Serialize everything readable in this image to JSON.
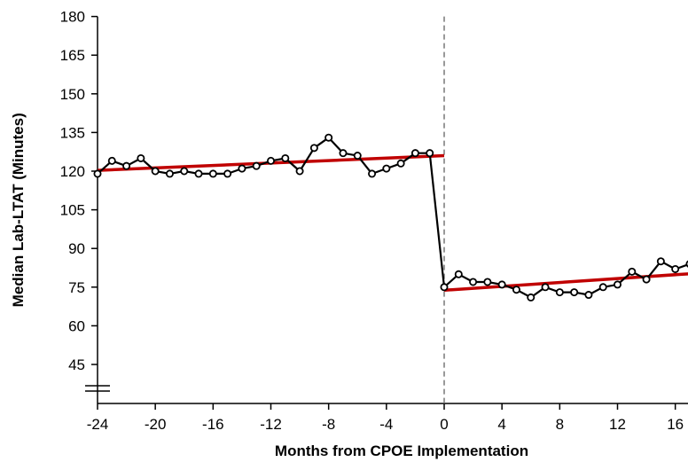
{
  "chart_data": {
    "type": "line",
    "title": "",
    "xlabel": "Months from CPOE Implementation",
    "ylabel": "Median Lab-LTAT (Minutes)",
    "xlim": [
      -24,
      17
    ],
    "ylim": [
      30,
      180
    ],
    "x_ticks": [
      -24,
      -20,
      -16,
      -12,
      -8,
      -4,
      0,
      4,
      8,
      12,
      16
    ],
    "x_tick_labels": [
      "-24",
      "-20",
      "-16",
      "-12",
      "-8",
      "-4",
      "0",
      "4",
      "8",
      "12",
      "16"
    ],
    "y_ticks": [
      45,
      60,
      75,
      90,
      105,
      120,
      135,
      150,
      165,
      180
    ],
    "y_tick_labels": [
      "45",
      "60",
      "75",
      "90",
      "105",
      "120",
      "135",
      "150",
      "165",
      "180"
    ],
    "y_axis_break": true,
    "intervention_x": 0,
    "grid": false,
    "legend": "none",
    "series": [
      {
        "role": "observed",
        "color": "#000000",
        "marker": "open-circle",
        "x": [
          -24,
          -23,
          -22,
          -21,
          -20,
          -19,
          -18,
          -17,
          -16,
          -15,
          -14,
          -13,
          -12,
          -11,
          -10,
          -9,
          -8,
          -7,
          -6,
          -5,
          -4,
          -3,
          -2,
          -1,
          0,
          1,
          2,
          3,
          4,
          5,
          6,
          7,
          8,
          9,
          10,
          11,
          12,
          13,
          14,
          15,
          16,
          17
        ],
        "values": [
          119,
          124,
          122,
          125,
          120,
          119,
          120,
          119,
          119,
          119,
          121,
          122,
          124,
          125,
          120,
          129,
          133,
          127,
          126,
          119,
          121,
          123,
          127,
          127,
          75,
          80,
          77,
          77,
          76,
          74,
          71,
          75,
          73,
          73,
          72,
          75,
          76,
          81,
          78,
          85,
          82,
          84
        ]
      },
      {
        "role": "pre-period trend",
        "color": "#c00000",
        "x": [
          -24,
          0
        ],
        "values": [
          120.3,
          126.0
        ]
      },
      {
        "role": "post-period trend",
        "color": "#c00000",
        "x": [
          0,
          17
        ],
        "values": [
          73.8,
          80.2
        ]
      }
    ]
  }
}
